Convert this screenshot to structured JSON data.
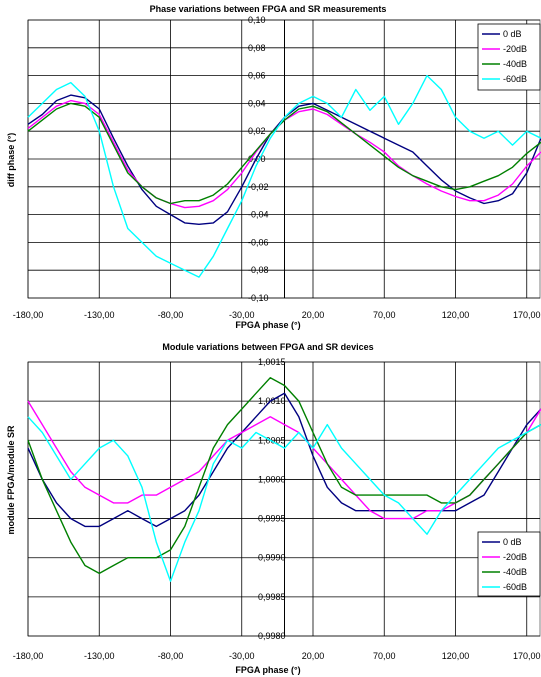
{
  "chart_data": [
    {
      "type": "line",
      "title": "Phase variations between FPGA and SR measurements",
      "xlabel": "FPGA phase (°)",
      "ylabel": "diff phase (°)",
      "xlim": [
        -180,
        180
      ],
      "ylim": [
        -0.1,
        0.1
      ],
      "x_ticks": [
        "-180,00",
        "-130,00",
        "-80,00",
        "-30,00",
        "20,00",
        "70,00",
        "120,00",
        "170,00"
      ],
      "y_ticks": [
        "0,10",
        "0,08",
        "0,06",
        "0,04",
        "0,02",
        "0,00",
        "-0,02",
        "-0,04",
        "-0,06",
        "-0,08",
        "-0,10"
      ],
      "legend_position": "top-right",
      "grid": true,
      "series": [
        {
          "name": "0 dB",
          "color": "#000080",
          "x": [
            -180,
            -170,
            -160,
            -150,
            -140,
            -130,
            -120,
            -110,
            -100,
            -90,
            -80,
            -70,
            -60,
            -50,
            -40,
            -30,
            -20,
            -10,
            0,
            10,
            20,
            30,
            40,
            50,
            60,
            70,
            80,
            90,
            100,
            110,
            120,
            130,
            140,
            150,
            160,
            170,
            180
          ],
          "y": [
            0.025,
            0.032,
            0.042,
            0.046,
            0.044,
            0.036,
            0.015,
            -0.005,
            -0.022,
            -0.034,
            -0.04,
            -0.046,
            -0.047,
            -0.046,
            -0.038,
            -0.02,
            0.0,
            0.018,
            0.03,
            0.038,
            0.04,
            0.035,
            0.03,
            0.025,
            0.02,
            0.015,
            0.01,
            0.005,
            -0.005,
            -0.015,
            -0.023,
            -0.028,
            -0.032,
            -0.03,
            -0.025,
            -0.01,
            0.015
          ]
        },
        {
          "name": "-20dB",
          "color": "#ff00ff",
          "x": [
            -180,
            -170,
            -160,
            -150,
            -140,
            -130,
            -120,
            -110,
            -100,
            -90,
            -80,
            -70,
            -60,
            -50,
            -40,
            -30,
            -20,
            -10,
            0,
            10,
            20,
            30,
            40,
            50,
            60,
            70,
            80,
            90,
            100,
            110,
            120,
            130,
            140,
            150,
            160,
            170,
            180
          ],
          "y": [
            0.022,
            0.03,
            0.038,
            0.042,
            0.04,
            0.032,
            0.012,
            -0.008,
            -0.02,
            -0.028,
            -0.032,
            -0.035,
            -0.034,
            -0.03,
            -0.022,
            -0.01,
            0.005,
            0.018,
            0.028,
            0.034,
            0.036,
            0.032,
            0.025,
            0.018,
            0.012,
            0.005,
            -0.005,
            -0.012,
            -0.018,
            -0.023,
            -0.027,
            -0.03,
            -0.03,
            -0.026,
            -0.018,
            -0.005,
            0.005
          ]
        },
        {
          "name": "-40dB",
          "color": "#008000",
          "x": [
            -180,
            -170,
            -160,
            -150,
            -140,
            -130,
            -120,
            -110,
            -100,
            -90,
            -80,
            -70,
            -60,
            -50,
            -40,
            -30,
            -20,
            -10,
            0,
            10,
            20,
            30,
            40,
            50,
            60,
            70,
            80,
            90,
            100,
            110,
            120,
            130,
            140,
            150,
            160,
            170,
            180
          ],
          "y": [
            0.02,
            0.028,
            0.036,
            0.04,
            0.038,
            0.03,
            0.01,
            -0.01,
            -0.02,
            -0.028,
            -0.032,
            -0.03,
            -0.03,
            -0.026,
            -0.018,
            -0.006,
            0.006,
            0.018,
            0.028,
            0.036,
            0.038,
            0.034,
            0.026,
            0.018,
            0.01,
            0.002,
            -0.006,
            -0.012,
            -0.016,
            -0.02,
            -0.022,
            -0.02,
            -0.016,
            -0.012,
            -0.006,
            0.004,
            0.012
          ]
        },
        {
          "name": "-60dB",
          "color": "#00ffff",
          "x": [
            -180,
            -170,
            -160,
            -150,
            -140,
            -130,
            -120,
            -110,
            -100,
            -90,
            -80,
            -70,
            -60,
            -50,
            -40,
            -30,
            -20,
            -10,
            0,
            10,
            20,
            30,
            40,
            50,
            60,
            70,
            80,
            90,
            100,
            110,
            120,
            130,
            140,
            150,
            160,
            170,
            180
          ],
          "y": [
            0.03,
            0.04,
            0.05,
            0.055,
            0.045,
            0.02,
            -0.02,
            -0.05,
            -0.06,
            -0.07,
            -0.075,
            -0.08,
            -0.085,
            -0.07,
            -0.05,
            -0.03,
            -0.005,
            0.015,
            0.03,
            0.04,
            0.045,
            0.04,
            0.03,
            0.05,
            0.035,
            0.045,
            0.025,
            0.04,
            0.06,
            0.05,
            0.03,
            0.02,
            0.015,
            0.02,
            0.01,
            0.02,
            0.015
          ]
        }
      ]
    },
    {
      "type": "line",
      "title": "Module variations between FPGA and SR devices",
      "xlabel": "FPGA phase (°)",
      "ylabel": "module FPGA/module SR",
      "xlim": [
        -180,
        180
      ],
      "ylim": [
        0.998,
        1.0015
      ],
      "x_ticks": [
        "-180,00",
        "-130,00",
        "-80,00",
        "-30,00",
        "20,00",
        "70,00",
        "120,00",
        "170,00"
      ],
      "y_ticks": [
        "1,0015",
        "1,0010",
        "1,0005",
        "1,0000",
        "0,9995",
        "0,9990",
        "0,9985",
        "0,9980"
      ],
      "legend_position": "right",
      "grid": true,
      "series": [
        {
          "name": "0 dB",
          "color": "#000080",
          "x": [
            -180,
            -170,
            -160,
            -150,
            -140,
            -130,
            -120,
            -110,
            -100,
            -90,
            -80,
            -70,
            -60,
            -50,
            -40,
            -30,
            -20,
            -10,
            0,
            10,
            20,
            30,
            40,
            50,
            60,
            70,
            80,
            90,
            100,
            110,
            120,
            130,
            140,
            150,
            160,
            170,
            180
          ],
          "y": [
            1.0004,
            1.0,
            0.9997,
            0.9995,
            0.9994,
            0.9994,
            0.9995,
            0.9996,
            0.9995,
            0.9994,
            0.9995,
            0.9996,
            0.9998,
            1.0001,
            1.0004,
            1.0006,
            1.0008,
            1.001,
            1.0011,
            1.0008,
            1.0003,
            0.9999,
            0.9997,
            0.9996,
            0.9996,
            0.9996,
            0.9996,
            0.9996,
            0.9996,
            0.9996,
            0.9996,
            0.9997,
            0.9998,
            1.0001,
            1.0004,
            1.0007,
            1.0009
          ]
        },
        {
          "name": "-20dB",
          "color": "#ff00ff",
          "x": [
            -180,
            -170,
            -160,
            -150,
            -140,
            -130,
            -120,
            -110,
            -100,
            -90,
            -80,
            -70,
            -60,
            -50,
            -40,
            -30,
            -20,
            -10,
            0,
            10,
            20,
            30,
            40,
            50,
            60,
            70,
            80,
            90,
            100,
            110,
            120,
            130,
            140,
            150,
            160,
            170,
            180
          ],
          "y": [
            1.001,
            1.0007,
            1.0004,
            1.0001,
            0.9999,
            0.9998,
            0.9997,
            0.9997,
            0.9998,
            0.9998,
            0.9999,
            1.0,
            1.0001,
            1.0003,
            1.0005,
            1.0006,
            1.0007,
            1.0008,
            1.0007,
            1.0006,
            1.0004,
            1.0002,
            1.0,
            0.9998,
            0.9996,
            0.9995,
            0.9995,
            0.9995,
            0.9996,
            0.9996,
            0.9997,
            0.9998,
            1.0,
            1.0002,
            1.0004,
            1.0006,
            1.0009
          ]
        },
        {
          "name": "-40dB",
          "color": "#008000",
          "x": [
            -180,
            -170,
            -160,
            -150,
            -140,
            -130,
            -120,
            -110,
            -100,
            -90,
            -80,
            -70,
            -60,
            -50,
            -40,
            -30,
            -20,
            -10,
            0,
            10,
            20,
            30,
            40,
            50,
            60,
            70,
            80,
            90,
            100,
            110,
            120,
            130,
            140,
            150,
            160,
            170,
            180
          ],
          "y": [
            1.0005,
            1.0,
            0.9996,
            0.9992,
            0.9989,
            0.9988,
            0.9989,
            0.999,
            0.999,
            0.999,
            0.9991,
            0.9994,
            0.9999,
            1.0004,
            1.0007,
            1.0009,
            1.0011,
            1.0013,
            1.0012,
            1.001,
            1.0006,
            1.0002,
            0.9999,
            0.9998,
            0.9998,
            0.9998,
            0.9998,
            0.9998,
            0.9998,
            0.9997,
            0.9997,
            0.9998,
            1.0,
            1.0002,
            1.0004,
            1.0006,
            1.0007
          ]
        },
        {
          "name": "-60dB",
          "color": "#00ffff",
          "x": [
            -180,
            -170,
            -160,
            -150,
            -140,
            -130,
            -120,
            -110,
            -100,
            -90,
            -80,
            -70,
            -60,
            -50,
            -40,
            -30,
            -20,
            -10,
            0,
            10,
            20,
            30,
            40,
            50,
            60,
            70,
            80,
            90,
            100,
            110,
            120,
            130,
            140,
            150,
            160,
            170,
            180
          ],
          "y": [
            1.0008,
            1.0006,
            1.0003,
            1.0,
            1.0002,
            1.0004,
            1.0005,
            1.0003,
            0.9999,
            0.9992,
            0.9987,
            0.9992,
            0.9996,
            1.0002,
            1.0005,
            1.0004,
            1.0006,
            1.0005,
            1.0004,
            1.0006,
            1.0004,
            1.0007,
            1.0004,
            1.0002,
            1.0,
            0.9998,
            0.9997,
            0.9995,
            0.9993,
            0.9996,
            0.9998,
            1.0,
            1.0002,
            1.0004,
            1.0005,
            1.0006,
            1.0007
          ]
        }
      ]
    }
  ]
}
